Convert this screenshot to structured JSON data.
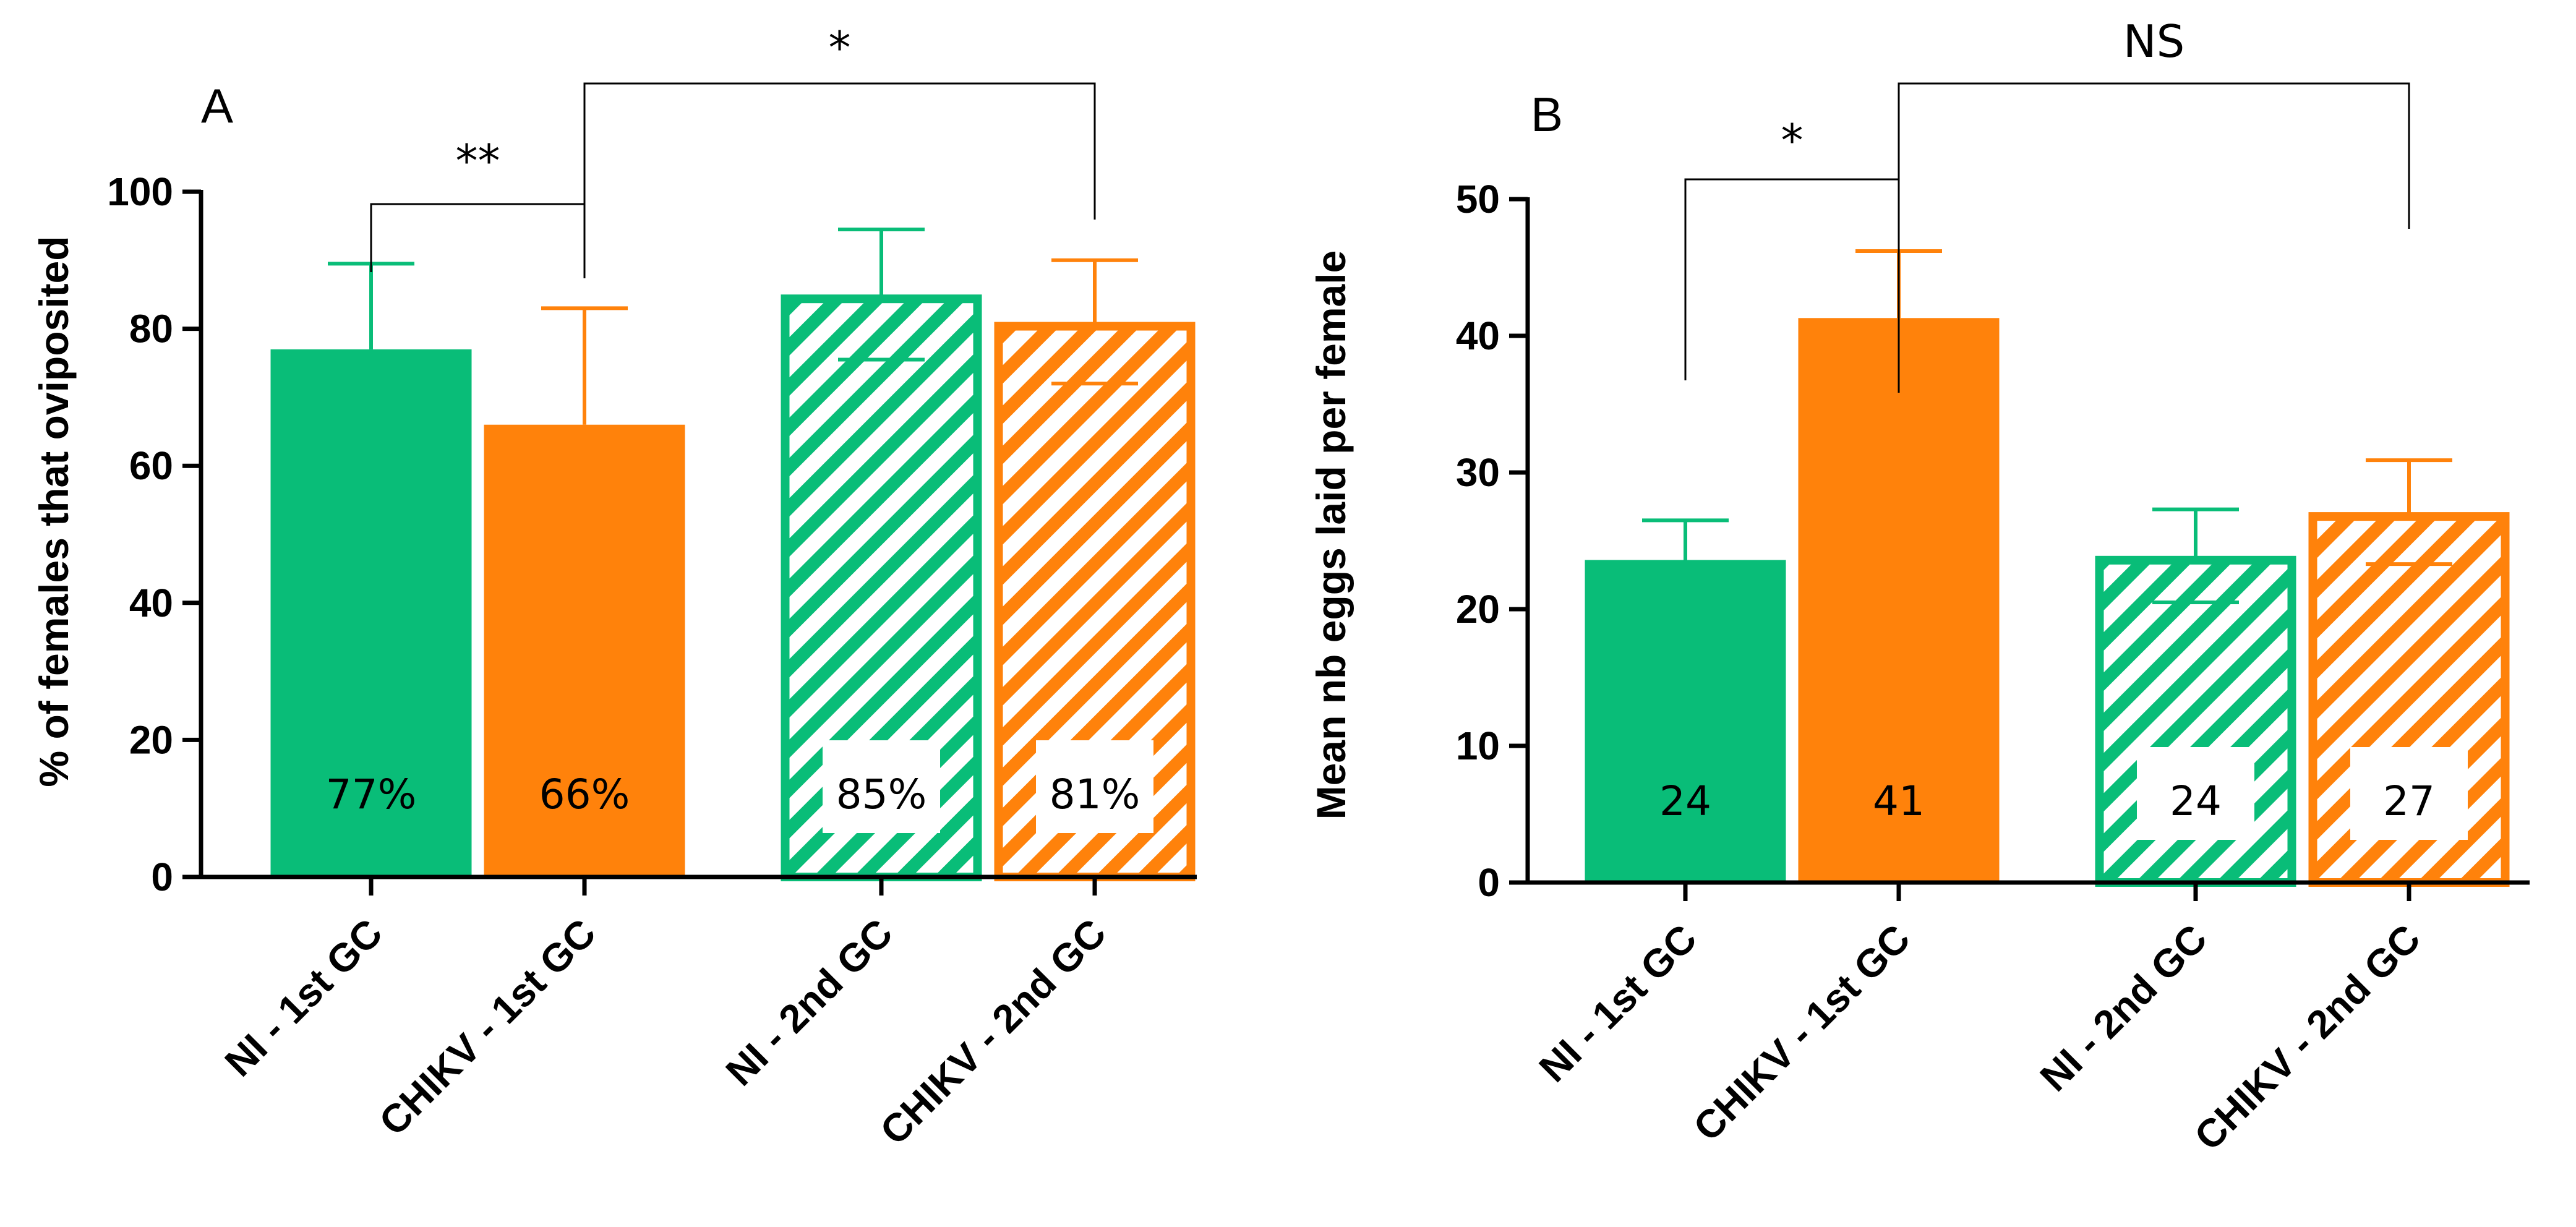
{
  "colors": {
    "green": "#09bd78",
    "orange": "#ff820b",
    "axis": "#000000"
  },
  "chart_data": [
    {
      "panel": "A",
      "type": "bar",
      "categories": [
        "NI - 1st GC",
        "CHIKV - 1st GC",
        "NI - 2nd GC",
        "CHIKV - 2nd GC"
      ],
      "values": [
        77,
        66,
        85,
        81
      ],
      "errors": [
        12.5,
        17,
        9.5,
        9
      ],
      "value_labels": [
        "77%",
        "66%",
        "85%",
        "81%"
      ],
      "patterns": [
        "solid",
        "solid",
        "hatched",
        "hatched"
      ],
      "bar_colors": [
        "#09bd78",
        "#ff820b",
        "#09bd78",
        "#ff820b"
      ],
      "ylabel": "% of females that oviposited",
      "xlabel": "",
      "ylim": [
        0,
        100
      ],
      "yticks": [
        0,
        20,
        40,
        60,
        80,
        100
      ],
      "significance": [
        {
          "from": 0,
          "to": 1,
          "label": "**"
        },
        {
          "from": 1,
          "to": 3,
          "label": "*"
        }
      ]
    },
    {
      "panel": "B",
      "type": "bar",
      "categories": [
        "NI - 1st GC",
        "CHIKV - 1st GC",
        "NI - 2nd GC",
        "CHIKV - 2nd GC"
      ],
      "values": [
        23.6,
        41.3,
        23.9,
        27.1
      ],
      "errors": [
        2.9,
        4.9,
        3.4,
        3.8
      ],
      "value_labels": [
        "24",
        "41",
        "24",
        "27"
      ],
      "patterns": [
        "solid",
        "solid",
        "hatched",
        "hatched"
      ],
      "bar_colors": [
        "#09bd78",
        "#ff820b",
        "#09bd78",
        "#ff820b"
      ],
      "ylabel": "Mean nb eggs laid per female",
      "xlabel": "",
      "ylim": [
        0,
        50
      ],
      "yticks": [
        0,
        10,
        20,
        30,
        40,
        50
      ],
      "significance": [
        {
          "from": 0,
          "to": 1,
          "label": "*"
        },
        {
          "from": 1,
          "to": 3,
          "label": "NS"
        }
      ]
    }
  ]
}
